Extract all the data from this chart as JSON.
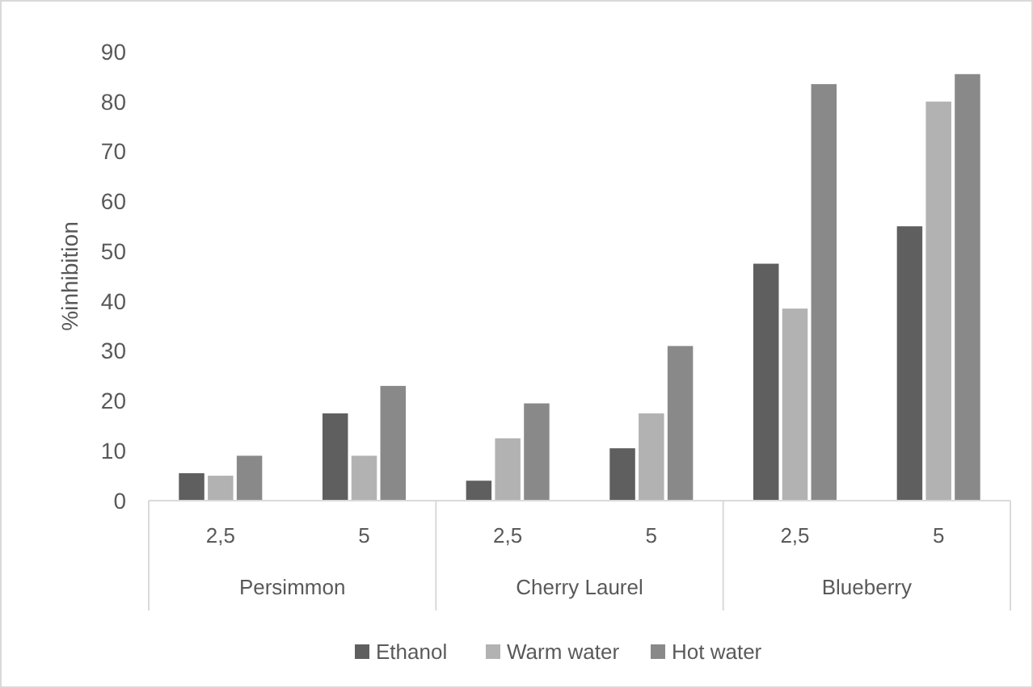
{
  "chart_data": {
    "type": "bar",
    "ylabel": "%inhibition",
    "categories": [
      "2,5",
      "5",
      "2,5",
      "5",
      "2,5",
      "5"
    ],
    "annotations": [
      "Persimmon",
      "Cherry Laurel",
      "Blueberry"
    ],
    "series": [
      {
        "name": "Ethanol",
        "color": "#5f5f5f",
        "values": [
          5.5,
          17.5,
          4,
          10.5,
          47.5,
          55
        ]
      },
      {
        "name": "Warm water",
        "color": "#b2b2b2",
        "values": [
          5,
          9,
          12.5,
          17.5,
          38.5,
          80
        ]
      },
      {
        "name": "Hot water",
        "color": "#898989",
        "values": [
          9,
          23,
          19.5,
          31,
          83.5,
          85.5
        ]
      }
    ],
    "ylim": [
      0,
      90
    ],
    "yticks": [
      0,
      10,
      20,
      30,
      40,
      50,
      60,
      70,
      80,
      90
    ],
    "grid": false,
    "legend": "bottom"
  }
}
